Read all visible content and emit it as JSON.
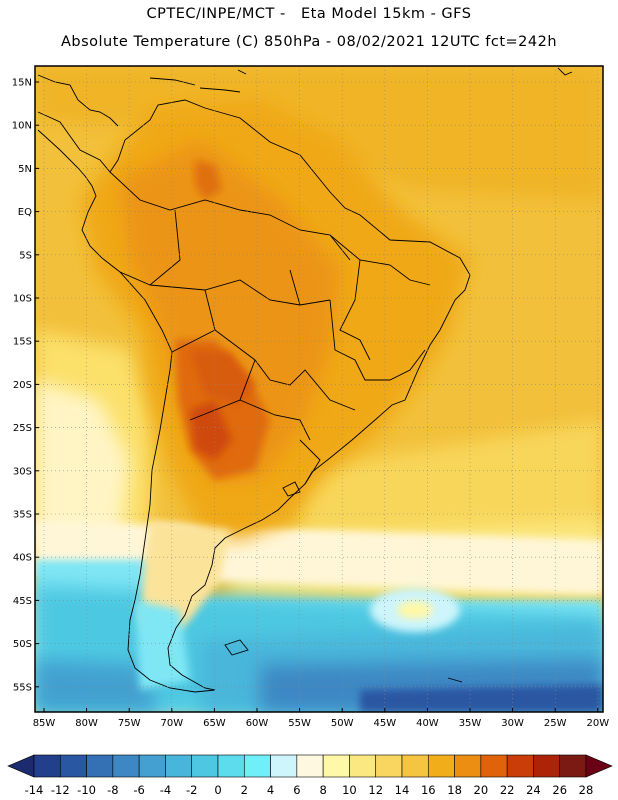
{
  "header": {
    "line1": "CPTEC/INPE/MCT -   Eta Model 15km - GFS",
    "line2": "Absolute Temperature (C) 850hPa - 08/02/2021 12UTC fct=242h"
  },
  "map": {
    "lat_labels": [
      "15N",
      "10N",
      "5N",
      "EQ",
      "5S",
      "10S",
      "15S",
      "20S",
      "25S",
      "30S",
      "35S",
      "40S",
      "45S",
      "50S",
      "55S"
    ],
    "lon_labels": [
      "85W",
      "80W",
      "75W",
      "70W",
      "65W",
      "60W",
      "55W",
      "50W",
      "45W",
      "40W",
      "35W",
      "30W",
      "25W",
      "20W"
    ]
  },
  "colorbar": {
    "labels": [
      "-14",
      "-12",
      "-10",
      "-8",
      "-6",
      "-4",
      "-2",
      "0",
      "2",
      "4",
      "6",
      "8",
      "10",
      "12",
      "14",
      "16",
      "18",
      "20",
      "22",
      "24",
      "26",
      "28"
    ],
    "under_color": "#1e2a6e",
    "over_color": "#6a0015",
    "colors": [
      "#223f8c",
      "#2a57a2",
      "#3470b4",
      "#3d88c4",
      "#43a0d0",
      "#48b6da",
      "#4ec8e2",
      "#5cdcec",
      "#6ff0f8",
      "#cdf5fb",
      "#fff8e0",
      "#fff8a8",
      "#fbe880",
      "#f8d660",
      "#f5c440",
      "#f2ae1a",
      "#ec8e12",
      "#e0620a",
      "#ca3d08",
      "#ac2308",
      "#7a1a12"
    ]
  }
}
